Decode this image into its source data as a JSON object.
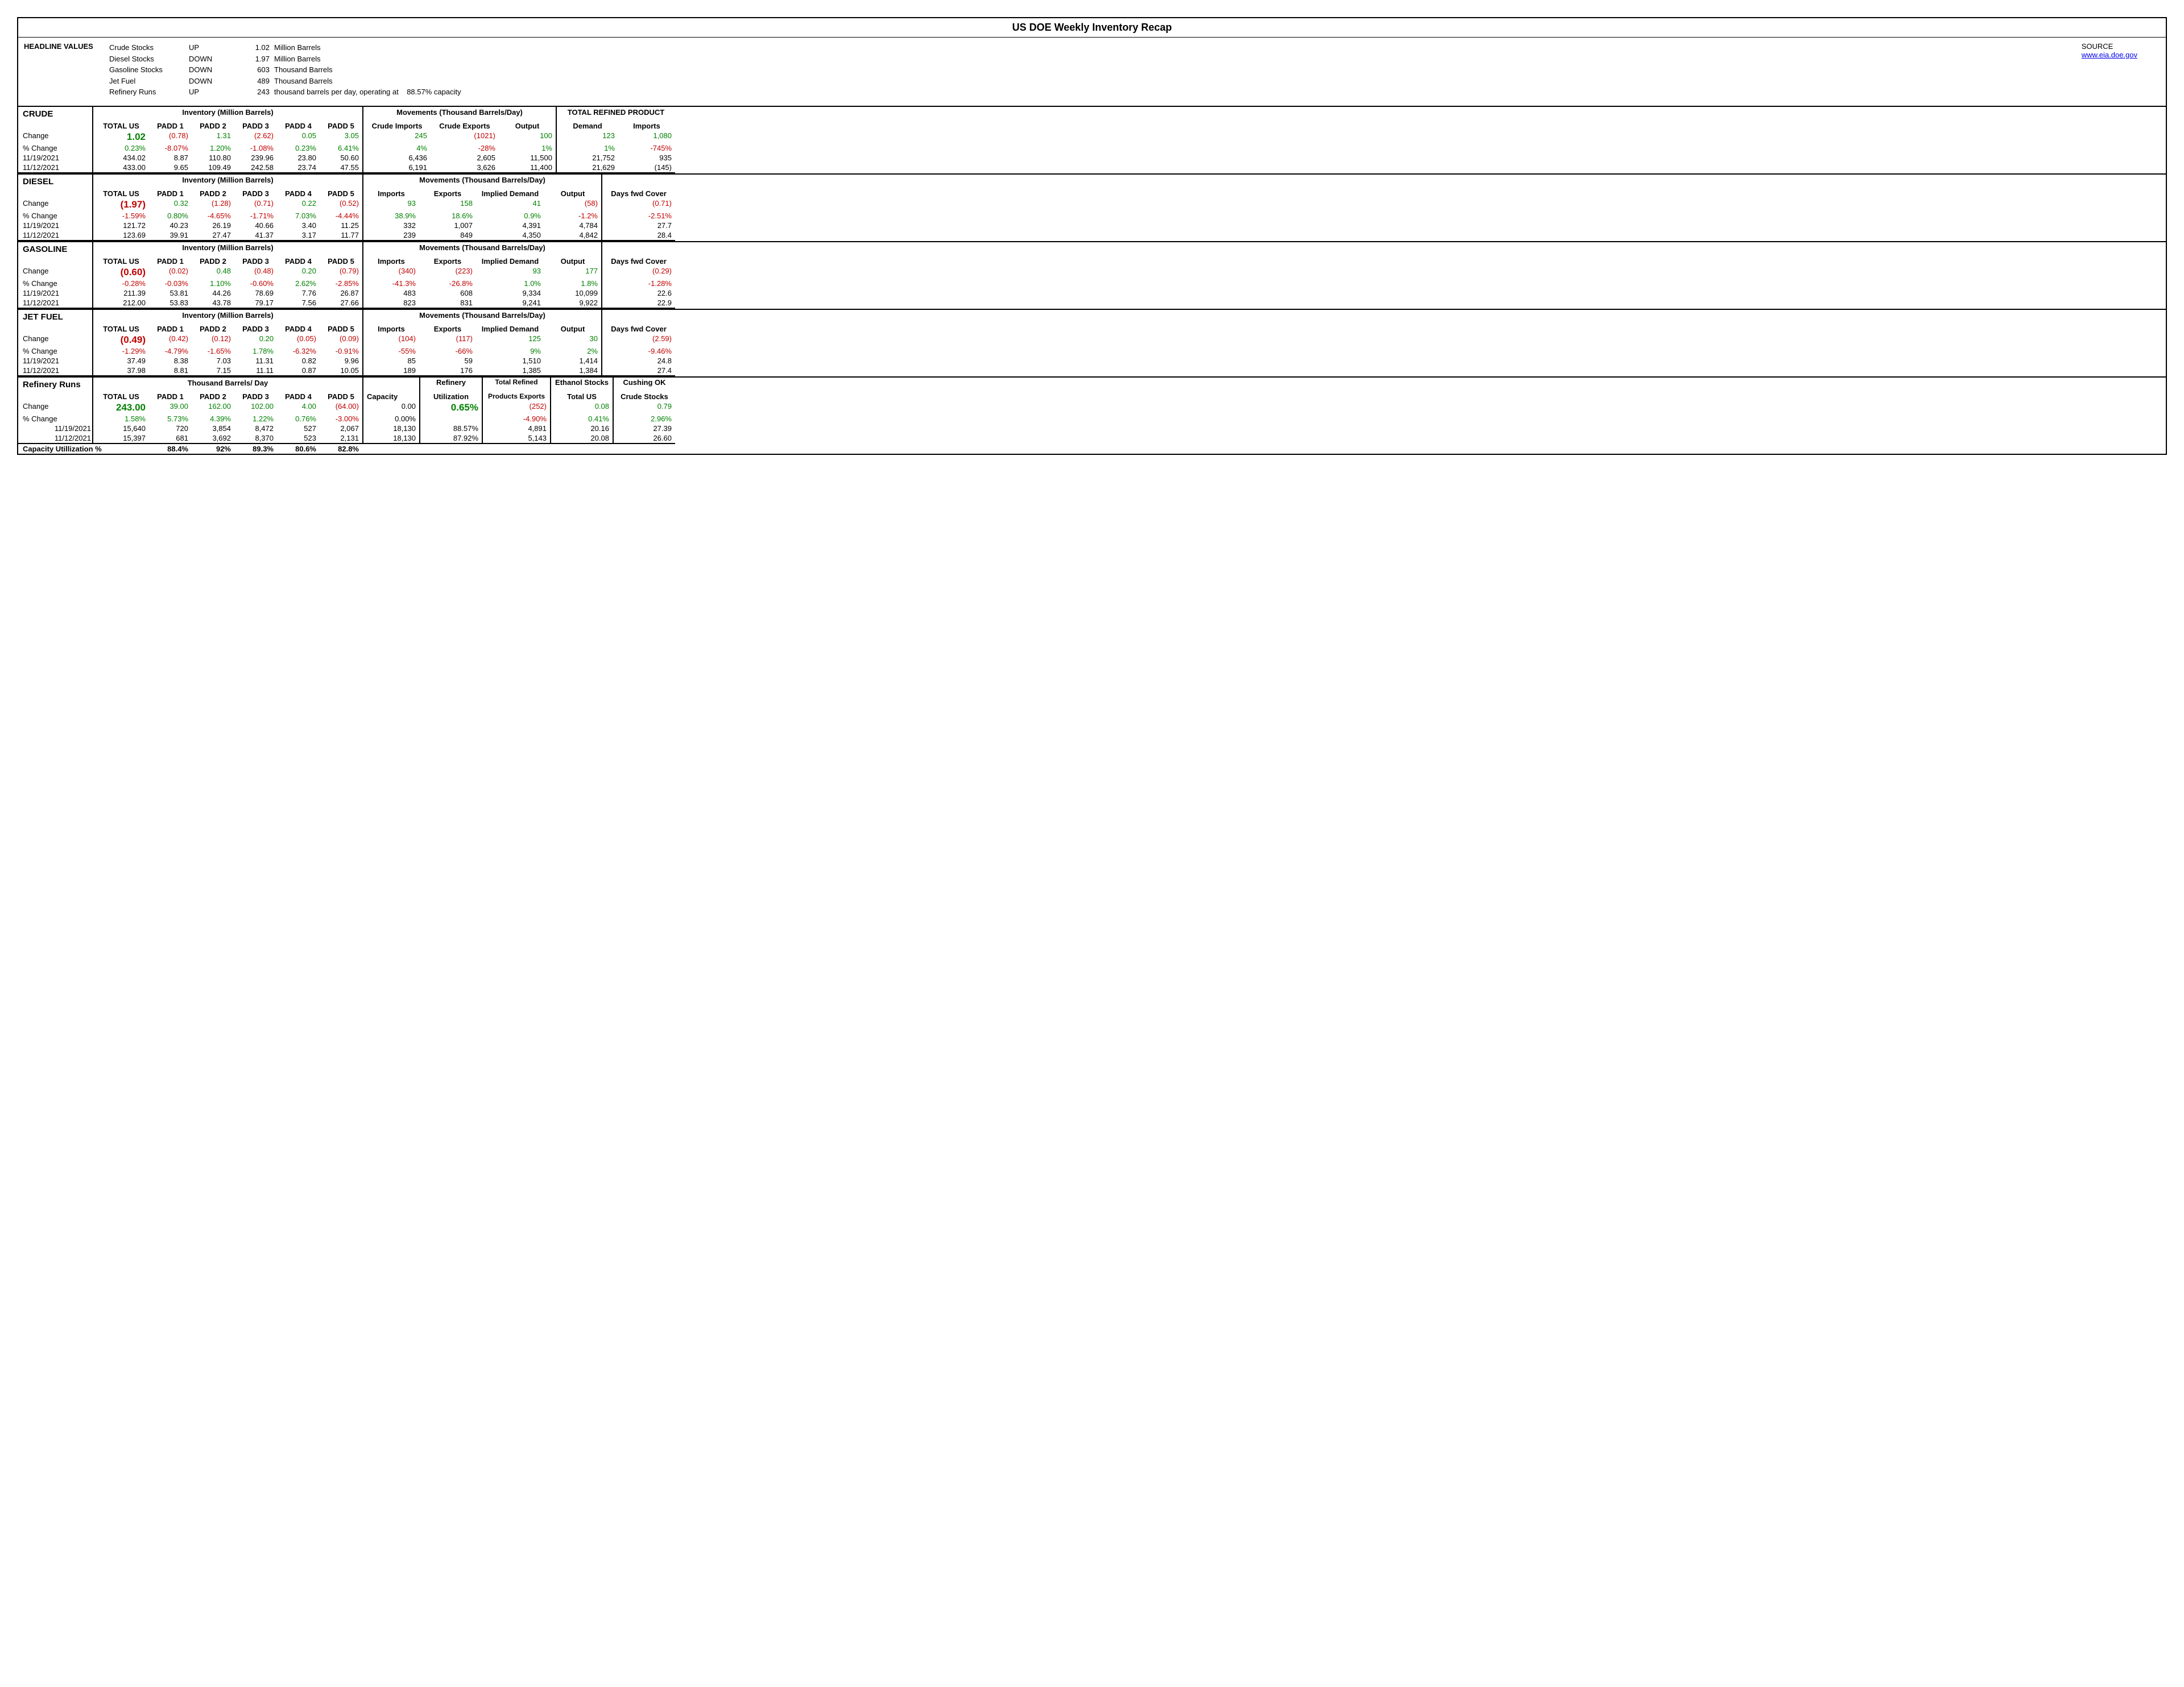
{
  "title": "US DOE Weekly Inventory Recap",
  "source_label": "SOURCE",
  "source_link": "www.eia.doe.gov",
  "headline_label": "HEADLINE VALUES",
  "headlines": [
    {
      "name": "Crude Stocks",
      "dir": "UP",
      "val": "1.02",
      "unit": "Million Barrels"
    },
    {
      "name": "Diesel Stocks",
      "dir": "DOWN",
      "val": "1.97",
      "unit": "Million Barrels"
    },
    {
      "name": "Gasoline Stocks",
      "dir": "DOWN",
      "val": "603",
      "unit": "Thousand Barrels"
    },
    {
      "name": "Jet Fuel",
      "dir": "DOWN",
      "val": "489",
      "unit": "Thousand Barrels"
    },
    {
      "name": "Refinery Runs",
      "dir": "UP",
      "val": "243",
      "unit": "thousand barrels per day, operating at",
      "extra": "88.57% capacity"
    }
  ],
  "padd_labels": [
    "TOTAL US",
    "PADD 1",
    "PADD 2",
    "PADD 3",
    "PADD 4",
    "PADD 5"
  ],
  "row_labels": {
    "change": "Change",
    "pct": "% Change"
  },
  "dates": {
    "d1": "11/19/2021",
    "d2": "11/12/2021"
  },
  "crude": {
    "name": "CRUDE",
    "span1": "Inventory (Million Barrels)",
    "span2": "Movements (Thousand Barrels/Day)",
    "span3": "TOTAL REFINED PRODUCT",
    "mov_headers": [
      "Crude Imports",
      "Crude Exports",
      "Output"
    ],
    "ref_headers": [
      "Demand",
      "Imports"
    ],
    "change": [
      {
        "v": "1.02",
        "c": "green big"
      },
      {
        "v": "(0.78)",
        "c": "red"
      },
      {
        "v": "1.31",
        "c": "green"
      },
      {
        "v": "(2.62)",
        "c": "red"
      },
      {
        "v": "0.05",
        "c": "green"
      },
      {
        "v": "3.05",
        "c": "green"
      },
      {
        "v": "245",
        "c": "green"
      },
      {
        "v": "(1021)",
        "c": "red"
      },
      {
        "v": "100",
        "c": "green"
      },
      {
        "v": "123",
        "c": "green"
      },
      {
        "v": "1,080",
        "c": "green"
      }
    ],
    "pct": [
      {
        "v": "0.23%",
        "c": "green"
      },
      {
        "v": "-8.07%",
        "c": "red"
      },
      {
        "v": "1.20%",
        "c": "green"
      },
      {
        "v": "-1.08%",
        "c": "red"
      },
      {
        "v": "0.23%",
        "c": "green"
      },
      {
        "v": "6.41%",
        "c": "green"
      },
      {
        "v": "4%",
        "c": "green"
      },
      {
        "v": "-28%",
        "c": "red"
      },
      {
        "v": "1%",
        "c": "green"
      },
      {
        "v": "1%",
        "c": "green"
      },
      {
        "v": "-745%",
        "c": "red"
      }
    ],
    "d1": [
      "434.02",
      "8.87",
      "110.80",
      "239.96",
      "23.80",
      "50.60",
      "6,436",
      "2,605",
      "11,500",
      "21,752",
      "935"
    ],
    "d2": [
      "433.00",
      "9.65",
      "109.49",
      "242.58",
      "23.74",
      "47.55",
      "6,191",
      "3,626",
      "11,400",
      "21,629",
      "(145)"
    ]
  },
  "diesel": {
    "name": "DIESEL",
    "span1": "Inventory (Million Barrels)",
    "span2": "Movements (Thousand Barrels/Day)",
    "mov_headers": [
      "Imports",
      "Exports",
      "Implied Demand",
      "Output",
      "Days fwd Cover"
    ],
    "change": [
      {
        "v": "(1.97)",
        "c": "red big"
      },
      {
        "v": "0.32",
        "c": "green"
      },
      {
        "v": "(1.28)",
        "c": "red"
      },
      {
        "v": "(0.71)",
        "c": "red"
      },
      {
        "v": "0.22",
        "c": "green"
      },
      {
        "v": "(0.52)",
        "c": "red"
      },
      {
        "v": "93",
        "c": "green"
      },
      {
        "v": "158",
        "c": "green"
      },
      {
        "v": "41",
        "c": "green"
      },
      {
        "v": "(58)",
        "c": "red"
      },
      {
        "v": "(0.71)",
        "c": "red"
      }
    ],
    "pct": [
      {
        "v": "-1.59%",
        "c": "red"
      },
      {
        "v": "0.80%",
        "c": "green"
      },
      {
        "v": "-4.65%",
        "c": "red"
      },
      {
        "v": "-1.71%",
        "c": "red"
      },
      {
        "v": "7.03%",
        "c": "green"
      },
      {
        "v": "-4.44%",
        "c": "red"
      },
      {
        "v": "38.9%",
        "c": "green"
      },
      {
        "v": "18.6%",
        "c": "green"
      },
      {
        "v": "0.9%",
        "c": "green"
      },
      {
        "v": "-1.2%",
        "c": "red"
      },
      {
        "v": "-2.51%",
        "c": "red"
      }
    ],
    "d1": [
      "121.72",
      "40.23",
      "26.19",
      "40.66",
      "3.40",
      "11.25",
      "332",
      "1,007",
      "4,391",
      "4,784",
      "27.7"
    ],
    "d2": [
      "123.69",
      "39.91",
      "27.47",
      "41.37",
      "3.17",
      "11.77",
      "239",
      "849",
      "4,350",
      "4,842",
      "28.4"
    ]
  },
  "gasoline": {
    "name": "GASOLINE",
    "span1": "Inventory (Million Barrels)",
    "span2": "Movements (Thousand Barrels/Day)",
    "mov_headers": [
      "Imports",
      "Exports",
      "Implied Demand",
      "Output",
      "Days fwd Cover"
    ],
    "change": [
      {
        "v": "(0.60)",
        "c": "red big"
      },
      {
        "v": "(0.02)",
        "c": "red"
      },
      {
        "v": "0.48",
        "c": "green"
      },
      {
        "v": "(0.48)",
        "c": "red"
      },
      {
        "v": "0.20",
        "c": "green"
      },
      {
        "v": "(0.79)",
        "c": "red"
      },
      {
        "v": "(340)",
        "c": "red"
      },
      {
        "v": "(223)",
        "c": "red"
      },
      {
        "v": "93",
        "c": "green"
      },
      {
        "v": "177",
        "c": "green"
      },
      {
        "v": "(0.29)",
        "c": "red"
      }
    ],
    "pct": [
      {
        "v": "-0.28%",
        "c": "red"
      },
      {
        "v": "-0.03%",
        "c": "red"
      },
      {
        "v": "1.10%",
        "c": "green"
      },
      {
        "v": "-0.60%",
        "c": "red"
      },
      {
        "v": "2.62%",
        "c": "green"
      },
      {
        "v": "-2.85%",
        "c": "red"
      },
      {
        "v": "-41.3%",
        "c": "red"
      },
      {
        "v": "-26.8%",
        "c": "red"
      },
      {
        "v": "1.0%",
        "c": "green"
      },
      {
        "v": "1.8%",
        "c": "green"
      },
      {
        "v": "-1.28%",
        "c": "red"
      }
    ],
    "d1": [
      "211.39",
      "53.81",
      "44.26",
      "78.69",
      "7.76",
      "26.87",
      "483",
      "608",
      "9,334",
      "10,099",
      "22.6"
    ],
    "d2": [
      "212.00",
      "53.83",
      "43.78",
      "79.17",
      "7.56",
      "27.66",
      "823",
      "831",
      "9,241",
      "9,922",
      "22.9"
    ]
  },
  "jet": {
    "name": "JET FUEL",
    "span1": "Inventory (Million Barrels)",
    "span2": "Movements (Thousand Barrels/Day)",
    "mov_headers": [
      "Imports",
      "Exports",
      "Implied Demand",
      "Output",
      "Days fwd Cover"
    ],
    "change": [
      {
        "v": "(0.49)",
        "c": "red big"
      },
      {
        "v": "(0.42)",
        "c": "red"
      },
      {
        "v": "(0.12)",
        "c": "red"
      },
      {
        "v": "0.20",
        "c": "green"
      },
      {
        "v": "(0.05)",
        "c": "red"
      },
      {
        "v": "(0.09)",
        "c": "red"
      },
      {
        "v": "(104)",
        "c": "red"
      },
      {
        "v": "(117)",
        "c": "red"
      },
      {
        "v": "125",
        "c": "green"
      },
      {
        "v": "30",
        "c": "green"
      },
      {
        "v": "(2.59)",
        "c": "red"
      }
    ],
    "pct": [
      {
        "v": "-1.29%",
        "c": "red"
      },
      {
        "v": "-4.79%",
        "c": "red"
      },
      {
        "v": "-1.65%",
        "c": "red"
      },
      {
        "v": "1.78%",
        "c": "green"
      },
      {
        "v": "-6.32%",
        "c": "red"
      },
      {
        "v": "-0.91%",
        "c": "red"
      },
      {
        "v": "-55%",
        "c": "red"
      },
      {
        "v": "-66%",
        "c": "red"
      },
      {
        "v": "9%",
        "c": "green"
      },
      {
        "v": "2%",
        "c": "green"
      },
      {
        "v": "-9.46%",
        "c": "red"
      }
    ],
    "d1": [
      "37.49",
      "8.38",
      "7.03",
      "11.31",
      "0.82",
      "9.96",
      "85",
      "59",
      "1,510",
      "1,414",
      "24.8"
    ],
    "d2": [
      "37.98",
      "8.81",
      "7.15",
      "11.11",
      "0.87",
      "10.05",
      "189",
      "176",
      "1,385",
      "1,384",
      "27.4"
    ]
  },
  "refinery": {
    "name": "Refinery Runs",
    "span1": "Thousand Barrels/ Day",
    "h_capacity": "Capacity",
    "h_util": "Refinery",
    "h_util2": "Utilization",
    "h_trp": "Total Refined",
    "h_trp2": "Products Exports",
    "h_eth": "Ethanol Stocks",
    "h_eth2": "Total US",
    "h_cush": "Cushing OK",
    "h_cush2": "Crude Stocks",
    "change": [
      {
        "v": "243.00",
        "c": "green big"
      },
      {
        "v": "39.00",
        "c": "green"
      },
      {
        "v": "162.00",
        "c": "green"
      },
      {
        "v": "102.00",
        "c": "green"
      },
      {
        "v": "4.00",
        "c": "green"
      },
      {
        "v": "(64.00)",
        "c": "red"
      },
      {
        "v": "0.00",
        "c": ""
      },
      {
        "v": "0.65%",
        "c": "green big"
      },
      {
        "v": "(252)",
        "c": "red"
      },
      {
        "v": "0.08",
        "c": "green"
      },
      {
        "v": "0.79",
        "c": "green"
      }
    ],
    "pct": [
      {
        "v": "1.58%",
        "c": "green"
      },
      {
        "v": "5.73%",
        "c": "green"
      },
      {
        "v": "4.39%",
        "c": "green"
      },
      {
        "v": "1.22%",
        "c": "green"
      },
      {
        "v": "0.76%",
        "c": "green"
      },
      {
        "v": "-3.00%",
        "c": "red"
      },
      {
        "v": "0.00%",
        "c": ""
      },
      {
        "v": "",
        "c": ""
      },
      {
        "v": "-4.90%",
        "c": "red"
      },
      {
        "v": "0.41%",
        "c": "green"
      },
      {
        "v": "2.96%",
        "c": "green"
      }
    ],
    "d1": [
      "15,640",
      "720",
      "3,854",
      "8,472",
      "527",
      "2,067",
      "18,130",
      "88.57%",
      "4,891",
      "20.16",
      "27.39"
    ],
    "d2": [
      "15,397",
      "681",
      "3,692",
      "8,370",
      "523",
      "2,131",
      "18,130",
      "87.92%",
      "5,143",
      "20.08",
      "26.60"
    ],
    "cap_label": "Capacity Utillization %",
    "cap": [
      "",
      "88.4%",
      "92%",
      "89.3%",
      "80.6%",
      "82.8%",
      "",
      "",
      "",
      "",
      ""
    ]
  }
}
